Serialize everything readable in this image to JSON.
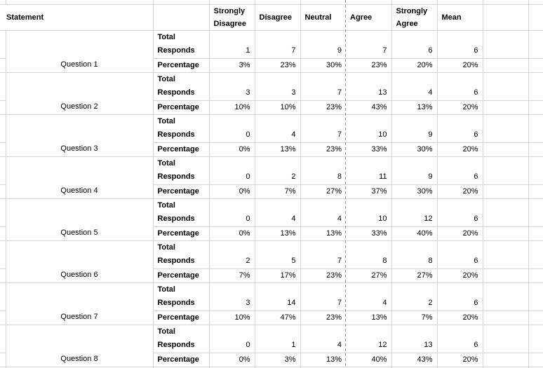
{
  "sheet": {
    "header": {
      "statement": "Statement",
      "columns": [
        "Strongly Disagree",
        "Disagree",
        "Neutral",
        "Agree",
        "Strongly Agree",
        "Mean"
      ]
    },
    "row_labels": {
      "responds": "Total Responds",
      "percentage": "Percentage"
    },
    "questions": [
      {
        "label": "Question 1",
        "responds": [
          1,
          7,
          9,
          7,
          6,
          6
        ],
        "percentages": [
          "3%",
          "23%",
          "30%",
          "23%",
          "20%",
          "20%"
        ]
      },
      {
        "label": "Question 2",
        "responds": [
          3,
          3,
          7,
          13,
          4,
          6
        ],
        "percentages": [
          "10%",
          "10%",
          "23%",
          "43%",
          "13%",
          "20%"
        ]
      },
      {
        "label": "Question 3",
        "responds": [
          0,
          4,
          7,
          10,
          9,
          6
        ],
        "percentages": [
          "0%",
          "13%",
          "23%",
          "33%",
          "30%",
          "20%"
        ]
      },
      {
        "label": "Question 4",
        "responds": [
          0,
          2,
          8,
          11,
          9,
          6
        ],
        "percentages": [
          "0%",
          "7%",
          "27%",
          "37%",
          "30%",
          "20%"
        ]
      },
      {
        "label": "Question 5",
        "responds": [
          0,
          4,
          4,
          10,
          12,
          6
        ],
        "percentages": [
          "0%",
          "13%",
          "13%",
          "33%",
          "40%",
          "20%"
        ]
      },
      {
        "label": "Question 6",
        "responds": [
          2,
          5,
          7,
          8,
          8,
          6
        ],
        "percentages": [
          "7%",
          "17%",
          "23%",
          "27%",
          "27%",
          "20%"
        ]
      },
      {
        "label": "Question 7",
        "responds": [
          3,
          14,
          7,
          4,
          2,
          6
        ],
        "percentages": [
          "10%",
          "47%",
          "23%",
          "13%",
          "7%",
          "20%"
        ]
      },
      {
        "label": "Question 8",
        "responds": [
          0,
          1,
          4,
          12,
          13,
          6
        ],
        "percentages": [
          "0%",
          "3%",
          "13%",
          "40%",
          "43%",
          "20%"
        ]
      }
    ],
    "colors": {
      "gridline": "#d4d4d4",
      "page_break_line": "#8f8f8f",
      "text": "#000000",
      "background": "#ffffff"
    }
  }
}
